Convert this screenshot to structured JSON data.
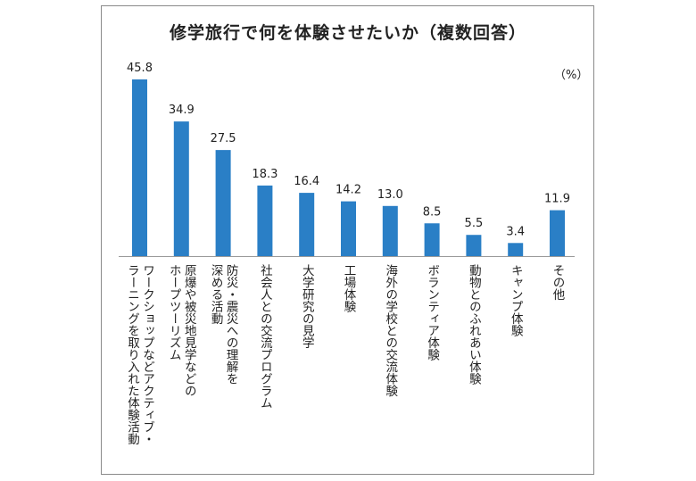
{
  "chart_data": {
    "type": "bar",
    "title": "修学旅行で何を体験させたいか（複数回答）",
    "unit": "（%）",
    "categories": [
      [
        "ワークショップなどアクティブ・",
        "ラーニングを取り入れた体験活動"
      ],
      [
        "原爆や被災地見学などの",
        "ホープツーリズム"
      ],
      [
        "防災・震災への理解を",
        "深める活動"
      ],
      [
        "社会人との交流プログラム"
      ],
      [
        "大学研究の見学"
      ],
      [
        "工場体験"
      ],
      [
        "海外の学校との交流体験"
      ],
      [
        "ボランティア体験"
      ],
      [
        "動物とのふれあい体験"
      ],
      [
        "キャンプ体験"
      ],
      [
        "その他"
      ]
    ],
    "values": [
      45.8,
      34.9,
      27.5,
      18.3,
      16.4,
      14.2,
      13.0,
      8.5,
      5.5,
      3.4,
      11.9
    ],
    "value_labels": [
      "45.8",
      "34.9",
      "27.5",
      "18.3",
      "16.4",
      "14.2",
      "13.0",
      "8.5",
      "5.5",
      "3.4",
      "11.9"
    ],
    "ylim": [
      0,
      50
    ],
    "grid": false,
    "legend": "none",
    "bar_color": "#2a7fc6"
  }
}
